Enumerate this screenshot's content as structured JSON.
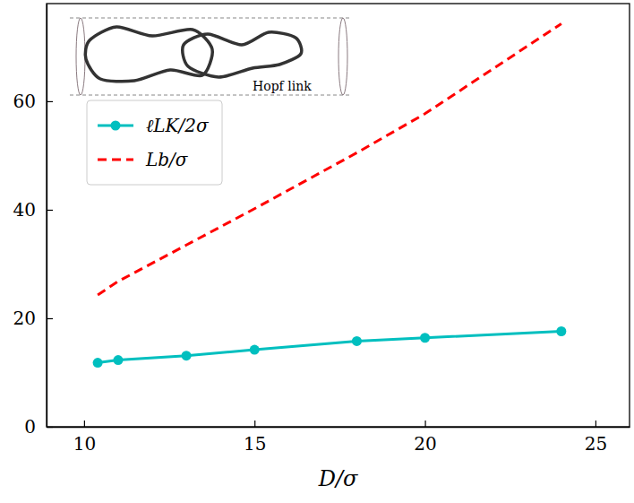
{
  "chart_data": {
    "type": "line",
    "x_label": "D/σ",
    "x": [
      10.4,
      11,
      13,
      15,
      18,
      20,
      24
    ],
    "series": [
      {
        "name": "ℓLK/2σ",
        "color": "#00bfbf",
        "marker": "circle",
        "line_style": "solid",
        "values": [
          11.8,
          12.3,
          13.1,
          14.2,
          15.8,
          16.4,
          17.6
        ]
      },
      {
        "name": "Lb/σ",
        "color": "#ff0000",
        "marker": "none",
        "line_style": "dashed",
        "values": [
          24.3,
          26.8,
          33.5,
          40.2,
          50.5,
          57.7,
          74.3
        ]
      }
    ],
    "xlim": [
      8.9,
      26
    ],
    "ylim": [
      0,
      78
    ],
    "xticks": [
      10,
      15,
      20,
      25
    ],
    "yticks": [
      0,
      20,
      40,
      60
    ],
    "legend": "upper left",
    "grid": false,
    "annotations": [
      "Hopf link"
    ]
  }
}
